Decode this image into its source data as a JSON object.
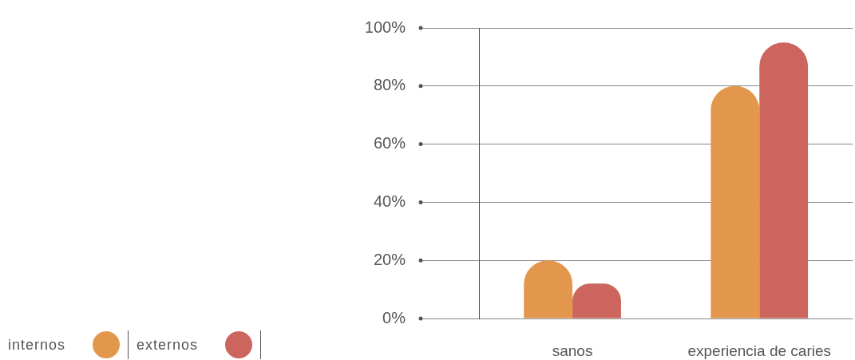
{
  "chart_data": {
    "type": "bar",
    "categories": [
      "sanos",
      "experiencia de caries"
    ],
    "series": [
      {
        "name": "internos",
        "color": "#e3974d",
        "values": [
          20,
          80
        ]
      },
      {
        "name": "externos",
        "color": "#cc655d",
        "values": [
          12,
          95
        ]
      }
    ],
    "ylim": [
      0,
      100
    ],
    "yticks": [
      {
        "value": 0,
        "label": "0%"
      },
      {
        "value": 20,
        "label": "20%"
      },
      {
        "value": 40,
        "label": "40%"
      },
      {
        "value": 60,
        "label": "60%"
      },
      {
        "value": 80,
        "label": "80%"
      },
      {
        "value": 100,
        "label": "100%"
      }
    ],
    "grid": "y",
    "legend": "bottom left"
  }
}
